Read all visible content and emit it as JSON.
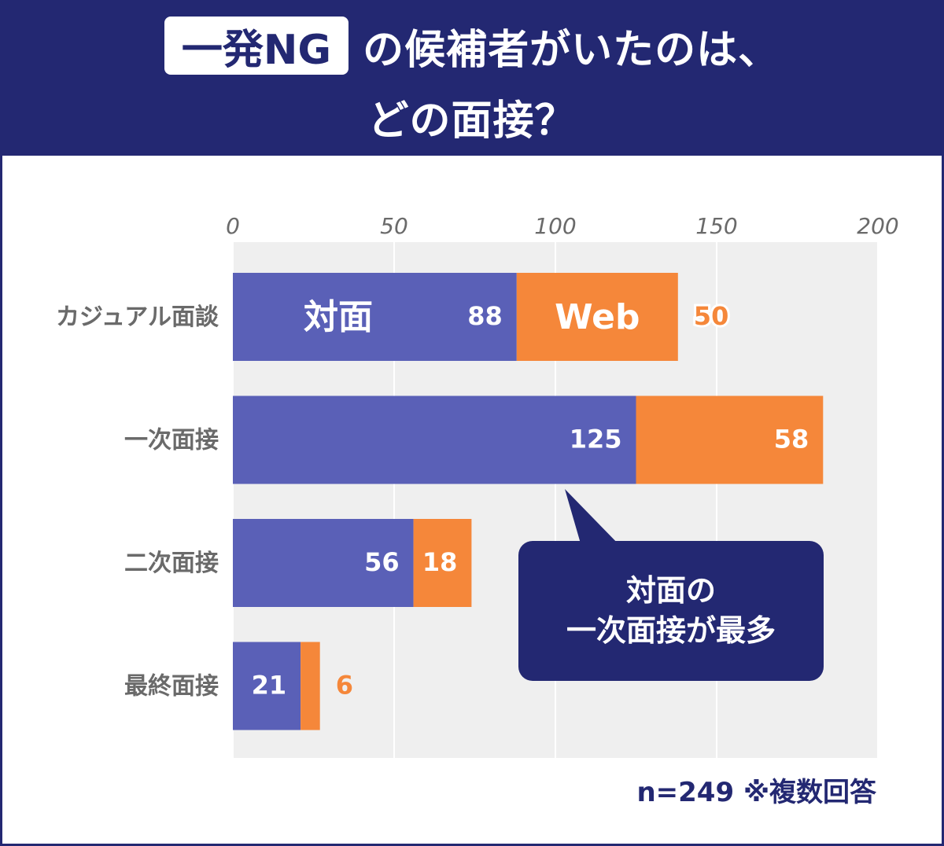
{
  "title": {
    "badge": "一発NG",
    "line1_rest": "の候補者がいたのは、",
    "line2": "どの面接？"
  },
  "chart_data": {
    "type": "bar",
    "orientation": "horizontal",
    "stacked": true,
    "categories": [
      "カジュアル面談",
      "一次面接",
      "二次面接",
      "最終面接"
    ],
    "series": [
      {
        "name": "対面",
        "values": [
          88,
          125,
          56,
          21
        ],
        "color": "#5a60b7"
      },
      {
        "name": "Web",
        "values": [
          50,
          58,
          18,
          6
        ],
        "color": "#f5873a"
      }
    ],
    "xlim": [
      0,
      200
    ],
    "xticks": [
      0,
      50,
      100,
      150,
      200
    ],
    "grid": true,
    "legend": "inline labels on first bar"
  },
  "callout": {
    "line1": "対面の",
    "line2": "一次面接が最多"
  },
  "footnote": "n=249 ※複数回答",
  "colors": {
    "navy": "#232872",
    "face_to_face": "#5a60b7",
    "web": "#f5873a",
    "plot_bg": "#efefef",
    "label_gray": "#6a6a6a"
  }
}
